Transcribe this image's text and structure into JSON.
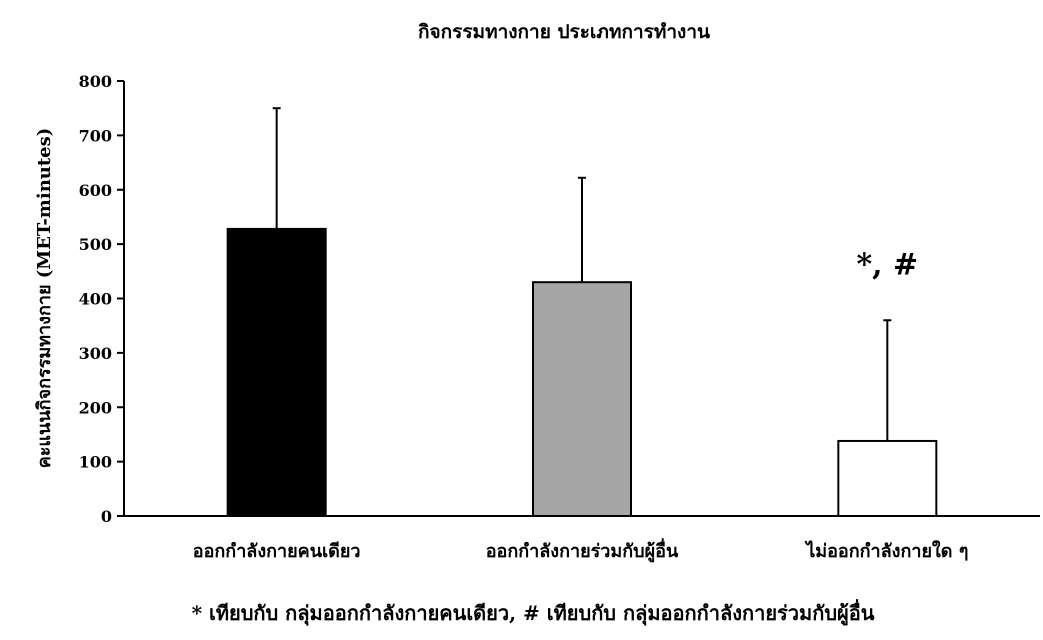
{
  "chart_data": {
    "type": "bar",
    "title": "กิจกรรมทางกาย ประเภทการทำงาน",
    "ylabel": "คะแนนกิจกรรมทางกาย (MET-minutes)",
    "xlabel": "",
    "ylim": [
      0,
      800
    ],
    "yticks": [
      0,
      100,
      200,
      300,
      400,
      500,
      600,
      700,
      800
    ],
    "categories": [
      "ออกกำลังกายคนเดียว",
      "ออกกำลังกายร่วมกับผู้อื่น",
      "ไม่ออกกำลังกายใด ๆ"
    ],
    "values": [
      528,
      430,
      138
    ],
    "error_plus": [
      222,
      192,
      222
    ],
    "bar_colors": [
      "#000000",
      "#a6a6a6",
      "#ffffff"
    ],
    "bar_annotations": [
      "",
      "",
      "*, #"
    ],
    "grid": false,
    "footnote": "* เทียบกับ กลุ่มออกกำลังกายคนเดียว, # เทียบกับ กลุ่มออกกำลังกายร่วมกับผู้อื่น"
  }
}
